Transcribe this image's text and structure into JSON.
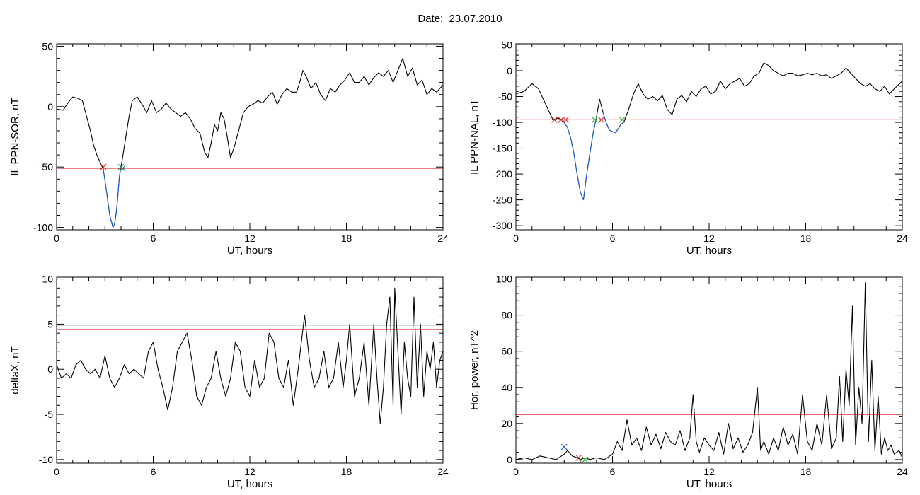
{
  "figure": {
    "title": "Date:  23.07.2010"
  },
  "chart_data": [
    {
      "type": "line",
      "title": "",
      "xlabel": "UT, hours",
      "ylabel": "IL PPN-SOR, nT",
      "xlim": [
        0,
        24
      ],
      "ylim": [
        -102,
        52
      ],
      "xticks": [
        0,
        6,
        12,
        18,
        24
      ],
      "xtick_labels": [
        "0",
        "6",
        "12",
        "18",
        "24"
      ],
      "yticks": [
        -100,
        -50,
        0,
        50
      ],
      "ytick_labels": [
        "-100",
        "-50",
        "0",
        "50"
      ],
      "grid": false,
      "legend": "none",
      "series": [
        {
          "color": "#000000",
          "x": [
            0,
            0.4,
            0.7,
            1.0,
            1.3,
            1.6,
            1.9,
            2.1,
            2.3,
            2.5,
            2.7,
            2.9,
            3.1,
            3.3,
            3.5,
            3.6,
            3.7,
            3.8,
            3.9,
            4.0,
            4.1,
            4.3,
            4.5,
            4.7,
            5.0,
            5.3,
            5.6,
            5.9,
            6.2,
            6.5,
            6.8,
            7.1,
            7.4,
            7.7,
            8.0,
            8.3,
            8.6,
            8.9,
            9.2,
            9.4,
            9.6,
            9.8,
            10.0,
            10.2,
            10.4,
            10.6,
            10.8,
            11.0,
            11.3,
            11.6,
            11.9,
            12.2,
            12.5,
            12.8,
            13.1,
            13.4,
            13.7,
            14.0,
            14.3,
            14.6,
            14.9,
            15.1,
            15.3,
            15.5,
            15.8,
            16.1,
            16.4,
            16.7,
            17.0,
            17.3,
            17.6,
            17.9,
            18.2,
            18.5,
            18.8,
            19.1,
            19.4,
            19.7,
            20.0,
            20.3,
            20.6,
            20.9,
            21.2,
            21.5,
            21.8,
            22.1,
            22.4,
            22.7,
            23.0,
            23.3,
            23.6,
            24.0
          ],
          "y": [
            -2,
            -3,
            3,
            8,
            7,
            5,
            -10,
            -20,
            -32,
            -40,
            -46,
            -52,
            -70,
            -90,
            -100,
            -97,
            -88,
            -75,
            -58,
            -50,
            -42,
            -25,
            -8,
            5,
            8,
            2,
            -5,
            5,
            -5,
            -2,
            3,
            -2,
            -5,
            -8,
            -5,
            -10,
            -18,
            -22,
            -38,
            -42,
            -30,
            -15,
            -20,
            -5,
            -10,
            -25,
            -42,
            -35,
            -20,
            -5,
            0,
            2,
            5,
            3,
            8,
            12,
            2,
            10,
            15,
            12,
            12,
            20,
            30,
            25,
            15,
            20,
            10,
            5,
            15,
            12,
            18,
            22,
            28,
            20,
            20,
            25,
            18,
            24,
            28,
            25,
            30,
            20,
            30,
            40,
            25,
            32,
            18,
            22,
            10,
            15,
            12,
            18
          ]
        },
        {
          "color": "#1f5fd0",
          "x": [
            2.9,
            3.1,
            3.3,
            3.5,
            3.6,
            3.7,
            3.8,
            3.9,
            4.0
          ],
          "y": [
            -52,
            -70,
            -90,
            -100,
            -97,
            -88,
            -75,
            -58,
            -50
          ]
        },
        {
          "color": "#e00000",
          "x": [
            0,
            24
          ],
          "y": [
            -51,
            -51
          ]
        }
      ],
      "markers": [
        {
          "x": 2.9,
          "y": -50,
          "color": "#e03030"
        },
        {
          "x": 4.0,
          "y": -50,
          "color": "#30b030"
        },
        {
          "x": 4.1,
          "y": -51,
          "color": "#208080"
        }
      ]
    },
    {
      "type": "line",
      "title": "",
      "xlabel": "UT, hours",
      "ylabel": "IL PPN-NAL, nT",
      "xlim": [
        0,
        24
      ],
      "ylim": [
        -308,
        52
      ],
      "xticks": [
        0,
        6,
        12,
        18,
        24
      ],
      "xtick_labels": [
        "0",
        "6",
        "12",
        "18",
        "24"
      ],
      "yticks": [
        -300,
        -250,
        -200,
        -150,
        -100,
        -50,
        0,
        50
      ],
      "ytick_labels": [
        "-300",
        "-250",
        "-200",
        "-150",
        "-100",
        "-50",
        "0",
        "50"
      ],
      "grid": false,
      "legend": "none",
      "series": [
        {
          "color": "#000000",
          "x": [
            0,
            0.5,
            1.0,
            1.4,
            1.7,
            2.0,
            2.3,
            2.6,
            2.9,
            3.2,
            3.4,
            3.6,
            3.8,
            4.0,
            4.2,
            4.4,
            4.6,
            4.8,
            5.0,
            5.2,
            5.4,
            5.6,
            5.8,
            6.0,
            6.2,
            6.5,
            6.7,
            7.0,
            7.3,
            7.6,
            7.9,
            8.2,
            8.5,
            8.8,
            9.1,
            9.4,
            9.7,
            10.0,
            10.3,
            10.6,
            10.9,
            11.2,
            11.5,
            11.8,
            12.1,
            12.4,
            12.7,
            13.0,
            13.3,
            13.6,
            13.9,
            14.2,
            14.5,
            14.8,
            15.1,
            15.4,
            15.7,
            16.0,
            16.3,
            16.6,
            16.9,
            17.2,
            17.5,
            17.8,
            18.1,
            18.4,
            18.7,
            19.0,
            19.3,
            19.6,
            19.9,
            20.2,
            20.5,
            20.8,
            21.1,
            21.4,
            21.7,
            22.0,
            22.3,
            22.6,
            22.9,
            23.2,
            23.5,
            24.0
          ],
          "y": [
            -45,
            -40,
            -25,
            -35,
            -55,
            -75,
            -95,
            -92,
            -95,
            -110,
            -130,
            -160,
            -200,
            -235,
            -250,
            -200,
            -160,
            -120,
            -90,
            -55,
            -80,
            -100,
            -115,
            -118,
            -120,
            -105,
            -100,
            -75,
            -45,
            -25,
            -45,
            -55,
            -50,
            -58,
            -48,
            -75,
            -85,
            -55,
            -48,
            -60,
            -40,
            -50,
            -35,
            -30,
            -45,
            -40,
            -20,
            -35,
            -25,
            -20,
            -15,
            -30,
            -25,
            -10,
            -5,
            15,
            10,
            0,
            -5,
            -10,
            -5,
            -5,
            -10,
            -8,
            -5,
            -8,
            -5,
            -10,
            -8,
            -15,
            -10,
            -5,
            5,
            -5,
            -15,
            -25,
            -30,
            -25,
            -35,
            -40,
            -30,
            -45,
            -35,
            -20
          ]
        },
        {
          "color": "#1f5fd0",
          "x": [
            2.9,
            3.2,
            3.4,
            3.6,
            3.8,
            4.0,
            4.2,
            4.4,
            4.6,
            4.8,
            5.0
          ],
          "y": [
            -95,
            -110,
            -130,
            -160,
            -200,
            -235,
            -250,
            -200,
            -160,
            -120,
            -90
          ]
        },
        {
          "color": "#1f5fd0",
          "x": [
            5.4,
            5.6,
            5.8,
            6.0,
            6.2,
            6.5
          ],
          "y": [
            -80,
            -100,
            -115,
            -118,
            -120,
            -105
          ]
        },
        {
          "color": "#e00000",
          "x": [
            0,
            24
          ],
          "y": [
            -95,
            -95
          ]
        }
      ],
      "markers": [
        {
          "x": 2.4,
          "y": -95,
          "color": "#e03030"
        },
        {
          "x": 2.8,
          "y": -95,
          "color": "#e03030"
        },
        {
          "x": 3.1,
          "y": -95,
          "color": "#e03030"
        },
        {
          "x": 4.9,
          "y": -95,
          "color": "#30b030"
        },
        {
          "x": 5.3,
          "y": -95,
          "color": "#e03030"
        },
        {
          "x": 6.6,
          "y": -95,
          "color": "#30b030"
        }
      ]
    },
    {
      "type": "line",
      "title": "",
      "xlabel": "UT, hours",
      "ylabel": "deltaX, nT",
      "xlim": [
        0,
        24
      ],
      "ylim": [
        -10.4,
        10.2
      ],
      "xticks": [
        0,
        6,
        12,
        18,
        24
      ],
      "xtick_labels": [
        "0",
        "6",
        "12",
        "18",
        "24"
      ],
      "yticks": [
        -10,
        -5,
        0,
        5,
        10
      ],
      "ytick_labels": [
        "-10",
        "-5",
        "0",
        "5",
        "10"
      ],
      "grid": false,
      "legend": "none",
      "series": [
        {
          "color": "#000000",
          "x": [
            0,
            0.3,
            0.6,
            0.9,
            1.2,
            1.5,
            1.8,
            2.1,
            2.4,
            2.7,
            3.0,
            3.3,
            3.6,
            3.9,
            4.2,
            4.5,
            4.8,
            5.1,
            5.4,
            5.7,
            6.0,
            6.3,
            6.6,
            6.9,
            7.2,
            7.5,
            7.8,
            8.1,
            8.4,
            8.7,
            9.0,
            9.3,
            9.6,
            9.9,
            10.2,
            10.5,
            10.8,
            11.1,
            11.4,
            11.7,
            12.0,
            12.3,
            12.6,
            12.9,
            13.2,
            13.5,
            13.8,
            14.1,
            14.4,
            14.7,
            15.0,
            15.2,
            15.4,
            15.7,
            16.0,
            16.3,
            16.6,
            16.9,
            17.2,
            17.5,
            17.8,
            18.0,
            18.2,
            18.5,
            18.8,
            19.1,
            19.4,
            19.7,
            19.9,
            20.1,
            20.3,
            20.5,
            20.7,
            20.9,
            21.0,
            21.2,
            21.4,
            21.6,
            21.8,
            22.0,
            22.2,
            22.4,
            22.6,
            22.8,
            23.0,
            23.2,
            23.4,
            23.6,
            23.8,
            24.0
          ],
          "y": [
            0.5,
            -1,
            -0.5,
            -1,
            0.5,
            1,
            0,
            -0.5,
            0,
            -1,
            1.5,
            -1,
            -2,
            -1,
            0.5,
            -0.5,
            0,
            -0.5,
            -1,
            2,
            3,
            0,
            -2,
            -4.5,
            -2,
            2,
            3,
            4,
            1,
            -3,
            -4,
            -2,
            -1,
            2,
            -1,
            -3,
            -1,
            3,
            2,
            -2,
            -3,
            1,
            -2,
            -1,
            4,
            3,
            -1,
            -2,
            1,
            -4,
            0,
            3,
            6,
            1,
            -2,
            -1,
            2,
            -2,
            -1,
            3,
            -2,
            1,
            5,
            -3,
            -1,
            3,
            -4,
            5,
            -1,
            -6,
            -2,
            5,
            8,
            -4,
            9,
            2,
            -5,
            3,
            -1,
            -3,
            8,
            -2,
            5,
            -3,
            2,
            0,
            3,
            -2,
            1,
            2
          ]
        },
        {
          "color": "#e00000",
          "x": [
            0,
            24
          ],
          "y": [
            4.4,
            4.4
          ]
        },
        {
          "color": "#208080",
          "x": [
            0,
            24
          ],
          "y": [
            4.9,
            4.9
          ]
        }
      ],
      "markers": []
    },
    {
      "type": "line",
      "title": "",
      "xlabel": "UT, hours",
      "ylabel": "Hor. power, nT^2",
      "xlim": [
        0,
        24
      ],
      "ylim": [
        -2,
        101
      ],
      "xticks": [
        0,
        6,
        12,
        18,
        24
      ],
      "xtick_labels": [
        "0",
        "6",
        "12",
        "18",
        "24"
      ],
      "yticks": [
        0,
        20,
        40,
        60,
        80,
        100
      ],
      "ytick_labels": [
        "0",
        "20",
        "40",
        "60",
        "80",
        "100"
      ],
      "grid": false,
      "legend": "none",
      "series": [
        {
          "color": "#000000",
          "x": [
            0,
            0.5,
            1.0,
            1.5,
            2.0,
            2.5,
            3.0,
            3.2,
            3.5,
            3.8,
            4.0,
            4.3,
            4.6,
            5.0,
            5.5,
            6.0,
            6.3,
            6.6,
            6.9,
            7.2,
            7.5,
            7.8,
            8.1,
            8.4,
            8.7,
            9.0,
            9.3,
            9.6,
            9.9,
            10.2,
            10.5,
            10.8,
            11.0,
            11.2,
            11.4,
            11.7,
            12.0,
            12.3,
            12.6,
            12.9,
            13.2,
            13.5,
            13.8,
            14.1,
            14.4,
            14.7,
            15.0,
            15.2,
            15.4,
            15.7,
            16.0,
            16.3,
            16.6,
            16.9,
            17.2,
            17.5,
            17.8,
            18.1,
            18.4,
            18.7,
            19.0,
            19.3,
            19.6,
            19.9,
            20.1,
            20.3,
            20.5,
            20.7,
            20.9,
            21.1,
            21.3,
            21.5,
            21.7,
            21.9,
            22.1,
            22.3,
            22.5,
            22.7,
            22.9,
            23.1,
            23.3,
            23.5,
            23.8,
            24.0
          ],
          "y": [
            0,
            1,
            0,
            2,
            1,
            0,
            3,
            5,
            2,
            1,
            0,
            1,
            0,
            1,
            0,
            3,
            10,
            5,
            22,
            8,
            12,
            5,
            18,
            8,
            14,
            6,
            15,
            10,
            8,
            16,
            5,
            12,
            36,
            10,
            4,
            12,
            8,
            5,
            15,
            3,
            20,
            6,
            12,
            4,
            8,
            15,
            40,
            5,
            10,
            3,
            12,
            5,
            18,
            8,
            14,
            3,
            36,
            10,
            5,
            20,
            8,
            36,
            6,
            12,
            46,
            10,
            50,
            30,
            85,
            8,
            40,
            20,
            98,
            10,
            55,
            5,
            35,
            3,
            12,
            5,
            8,
            3,
            5,
            1
          ]
        },
        {
          "color": "#e00000",
          "x": [
            0,
            24
          ],
          "y": [
            25,
            25
          ]
        }
      ],
      "markers": [
        {
          "x": 3.0,
          "y": 7,
          "color": "#1f5fd0"
        },
        {
          "x": 3.9,
          "y": 1,
          "color": "#e03030"
        },
        {
          "x": 4.3,
          "y": 0,
          "color": "#30b030"
        }
      ]
    }
  ]
}
